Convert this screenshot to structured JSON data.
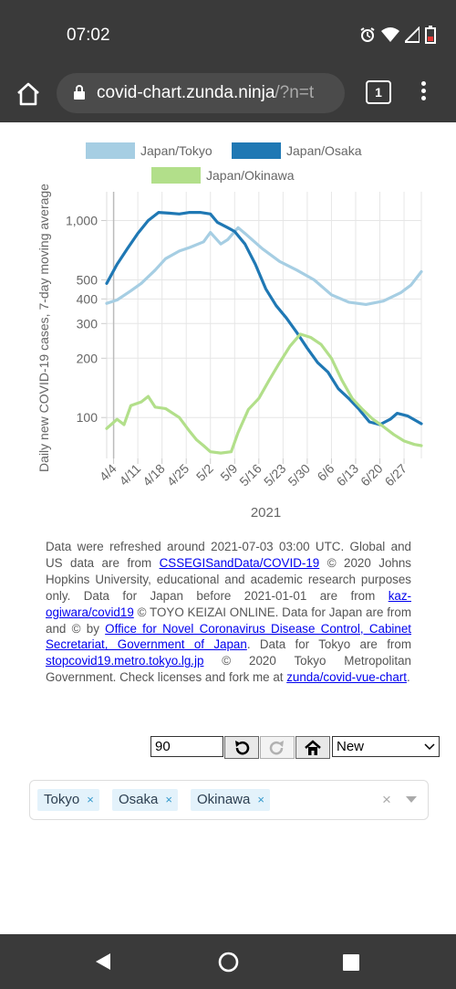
{
  "status": {
    "time": "07:02"
  },
  "browser": {
    "url_main": "covid-chart.zunda.ninja",
    "url_dim": "/?n=t",
    "tab_count": "1"
  },
  "chart_data": {
    "type": "line",
    "title": "",
    "xlabel": "2021",
    "ylabel": "Daily new COVID-19 cases, 7-day moving average",
    "y_scale": "log",
    "ylim": [
      62,
      1400
    ],
    "yticks": [
      {
        "label": "1,000",
        "value": 1000
      },
      {
        "label": "500",
        "value": 500
      },
      {
        "label": "400",
        "value": 400
      },
      {
        "label": "300",
        "value": 300
      },
      {
        "label": "200",
        "value": 200
      },
      {
        "label": "100",
        "value": 100
      }
    ],
    "xticks": [
      "4/4",
      "4/11",
      "4/18",
      "4/25",
      "5/2",
      "5/9",
      "5/16",
      "5/23",
      "5/30",
      "6/6",
      "6/13",
      "6/20",
      "6/27"
    ],
    "x_day_start": "4/2",
    "x_day_end": "7/2",
    "legend": [
      {
        "name": "Japan/Tokyo",
        "color": "#a6cee3"
      },
      {
        "name": "Japan/Osaka",
        "color": "#1f78b4"
      },
      {
        "name": "Japan/Okinawa",
        "color": "#b2df8a"
      }
    ],
    "series": [
      {
        "name": "Japan/Tokyo",
        "color": "#a6cee3",
        "points": [
          [
            0,
            380
          ],
          [
            3,
            395
          ],
          [
            7,
            440
          ],
          [
            10,
            480
          ],
          [
            14,
            560
          ],
          [
            17,
            640
          ],
          [
            21,
            700
          ],
          [
            24,
            730
          ],
          [
            28,
            780
          ],
          [
            30,
            870
          ],
          [
            33,
            760
          ],
          [
            35,
            800
          ],
          [
            37,
            880
          ],
          [
            38,
            920
          ],
          [
            40,
            860
          ],
          [
            45,
            720
          ],
          [
            50,
            620
          ],
          [
            55,
            560
          ],
          [
            60,
            500
          ],
          [
            65,
            420
          ],
          [
            70,
            385
          ],
          [
            75,
            375
          ],
          [
            80,
            390
          ],
          [
            85,
            430
          ],
          [
            88,
            470
          ],
          [
            91,
            550
          ]
        ]
      },
      {
        "name": "Japan/Osaka",
        "color": "#1f78b4",
        "points": [
          [
            0,
            480
          ],
          [
            3,
            600
          ],
          [
            6,
            720
          ],
          [
            9,
            860
          ],
          [
            12,
            1000
          ],
          [
            15,
            1100
          ],
          [
            18,
            1090
          ],
          [
            21,
            1080
          ],
          [
            24,
            1100
          ],
          [
            27,
            1100
          ],
          [
            30,
            1080
          ],
          [
            32,
            980
          ],
          [
            35,
            920
          ],
          [
            37,
            880
          ],
          [
            40,
            760
          ],
          [
            43,
            600
          ],
          [
            46,
            450
          ],
          [
            49,
            370
          ],
          [
            52,
            320
          ],
          [
            55,
            270
          ],
          [
            58,
            225
          ],
          [
            61,
            190
          ],
          [
            64,
            170
          ],
          [
            67,
            140
          ],
          [
            70,
            125
          ],
          [
            73,
            110
          ],
          [
            76,
            95
          ],
          [
            79,
            92
          ],
          [
            82,
            98
          ],
          [
            84,
            105
          ],
          [
            87,
            102
          ],
          [
            91,
            93
          ]
        ]
      },
      {
        "name": "Japan/Okinawa",
        "color": "#b2df8a",
        "points": [
          [
            0,
            88
          ],
          [
            3,
            98
          ],
          [
            5,
            92
          ],
          [
            7,
            115
          ],
          [
            10,
            120
          ],
          [
            12,
            128
          ],
          [
            14,
            113
          ],
          [
            17,
            111
          ],
          [
            21,
            100
          ],
          [
            24,
            85
          ],
          [
            26,
            77
          ],
          [
            28,
            72
          ],
          [
            30,
            67
          ],
          [
            33,
            66
          ],
          [
            36,
            67
          ],
          [
            38,
            84
          ],
          [
            41,
            110
          ],
          [
            44,
            125
          ],
          [
            47,
            155
          ],
          [
            50,
            190
          ],
          [
            53,
            230
          ],
          [
            56,
            265
          ],
          [
            59,
            255
          ],
          [
            62,
            235
          ],
          [
            65,
            200
          ],
          [
            68,
            155
          ],
          [
            71,
            125
          ],
          [
            74,
            110
          ],
          [
            77,
            98
          ],
          [
            80,
            90
          ],
          [
            83,
            82
          ],
          [
            86,
            76
          ],
          [
            89,
            73
          ],
          [
            91,
            72
          ]
        ]
      }
    ]
  },
  "caption": {
    "t1": "Data were refreshed around 2021-07-03 03:00 UTC. Global and US data are from ",
    "l1": "CSSEGISandData/COVID-19",
    "t2": " © 2020 Johns Hopkins University, educational and academic research purposes only. Data for Japan before 2021-01-01 are from ",
    "l2": "kaz-ogiwara/covid19",
    "t3": " © TOYO KEIZAI ONLINE. Data for Japan are from and © by ",
    "l3": "Office for Novel Coronavirus Disease Control, Cabinet Secretariat, Government of Japan",
    "t4": ". Data for Tokyo are from ",
    "l4": "stopcovid19.metro.tokyo.lg.jp",
    "t5": " © 2020 Tokyo Metropolitan Government. Check licenses and fork me at ",
    "l5": "zunda/covid-vue-chart",
    "t6": "."
  },
  "controls": {
    "days_value": "90",
    "mode_selected": "New"
  },
  "tags": {
    "items": [
      "Tokyo",
      "Osaka",
      "Okinawa"
    ],
    "remove_glyph": "×",
    "clear_glyph": "×"
  }
}
